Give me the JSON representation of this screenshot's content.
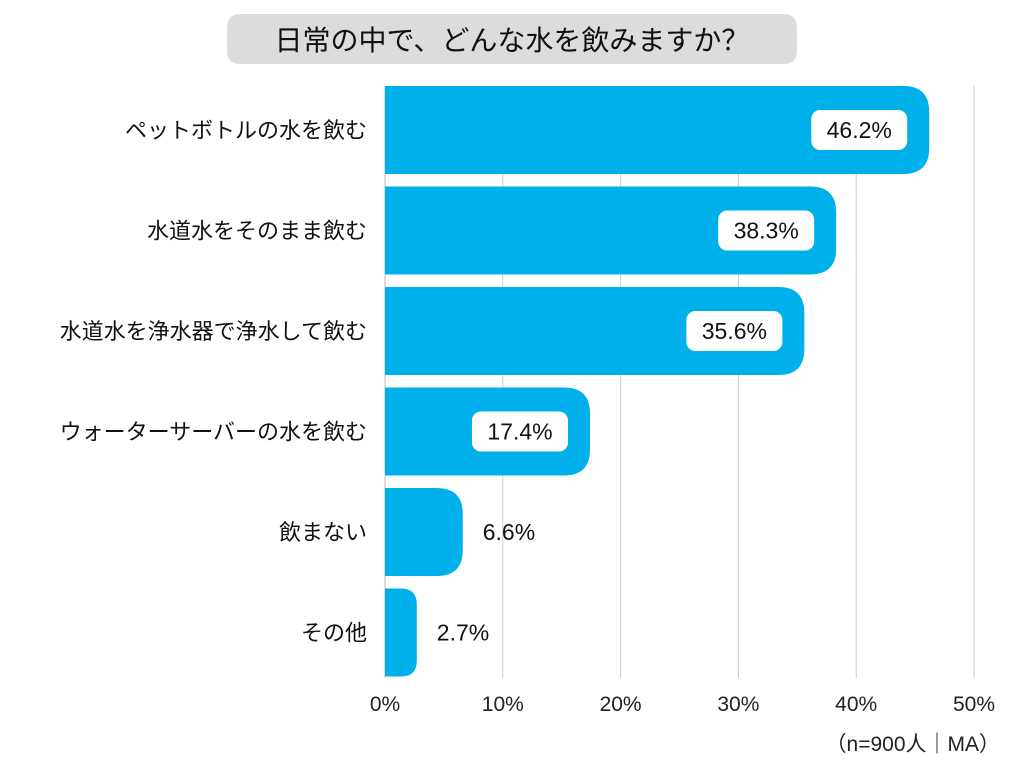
{
  "chart_data": {
    "type": "bar",
    "orientation": "horizontal",
    "title": "日常の中で、どんな水を飲みますか？",
    "categories": [
      "ペットボトルの水を飲む",
      "水道水をそのまま飲む",
      "水道水を浄水器で浄水して飲む",
      "ウォーターサーバーの水を飲む",
      "飲まない",
      "その他"
    ],
    "values": [
      46.2,
      38.3,
      35.6,
      17.4,
      6.6,
      2.7
    ],
    "value_labels": [
      "46.2%",
      "38.3%",
      "35.6%",
      "17.4%",
      "6.6%",
      "2.7%"
    ],
    "xlim": [
      0,
      50
    ],
    "xticks": [
      0,
      10,
      20,
      30,
      40,
      50
    ],
    "xtick_labels": [
      "0%",
      "10%",
      "20%",
      "30%",
      "40%",
      "50%"
    ],
    "grid": true,
    "note": "（n=900人｜MA）",
    "bar_color": "#00b0eb",
    "grid_color": "#cccccc"
  }
}
